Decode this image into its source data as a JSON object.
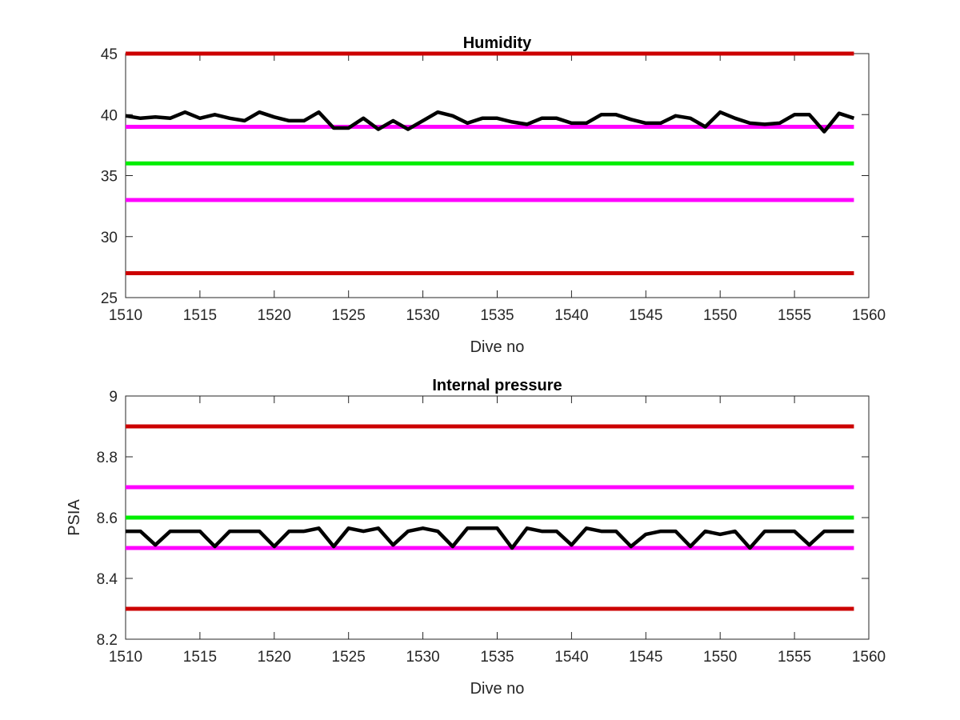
{
  "chart_data": [
    {
      "type": "line",
      "title": "Humidity",
      "xlabel": "Dive no",
      "ylabel": "",
      "xlim": [
        1510,
        1560
      ],
      "ylim": [
        25,
        45
      ],
      "xticks": [
        1510,
        1515,
        1520,
        1525,
        1530,
        1535,
        1540,
        1545,
        1550,
        1555,
        1560
      ],
      "yticks": [
        25,
        30,
        35,
        40,
        45
      ],
      "grid": false,
      "legend": "none",
      "reference_lines": [
        {
          "y": 45,
          "color": "#cc0000"
        },
        {
          "y": 39,
          "color": "#ff00ff"
        },
        {
          "y": 36,
          "color": "#00ee00"
        },
        {
          "y": 33,
          "color": "#ff00ff"
        },
        {
          "y": 27,
          "color": "#cc0000"
        }
      ],
      "series": [
        {
          "color": "#000000",
          "x": [
            1510,
            1511,
            1512,
            1513,
            1514,
            1515,
            1516,
            1517,
            1518,
            1519,
            1520,
            1521,
            1522,
            1523,
            1524,
            1525,
            1526,
            1527,
            1528,
            1529,
            1530,
            1531,
            1532,
            1533,
            1534,
            1535,
            1536,
            1537,
            1538,
            1539,
            1540,
            1541,
            1542,
            1543,
            1544,
            1545,
            1546,
            1547,
            1548,
            1549,
            1550,
            1551,
            1552,
            1553,
            1554,
            1555,
            1556,
            1557,
            1558,
            1559
          ],
          "values": [
            39.9,
            39.7,
            39.8,
            39.7,
            40.2,
            39.7,
            40.0,
            39.7,
            39.5,
            40.2,
            39.8,
            39.5,
            39.5,
            40.2,
            38.9,
            38.9,
            39.7,
            38.8,
            39.5,
            38.8,
            39.5,
            40.2,
            39.9,
            39.3,
            39.7,
            39.7,
            39.4,
            39.2,
            39.7,
            39.7,
            39.3,
            39.3,
            40.0,
            40.0,
            39.6,
            39.3,
            39.3,
            39.9,
            39.7,
            39.0,
            40.2,
            39.7,
            39.3,
            39.2,
            39.3,
            40.0,
            40.0,
            38.6,
            40.1,
            39.7
          ]
        }
      ]
    },
    {
      "type": "line",
      "title": "Internal pressure",
      "xlabel": "Dive no",
      "ylabel": "PSIA",
      "xlim": [
        1510,
        1560
      ],
      "ylim": [
        8.2,
        9.0
      ],
      "xticks": [
        1510,
        1515,
        1520,
        1525,
        1530,
        1535,
        1540,
        1545,
        1550,
        1555,
        1560
      ],
      "yticks": [
        8.2,
        8.4,
        8.6,
        8.8,
        9.0
      ],
      "ytick_labels": [
        "8.2",
        "8.4",
        "8.6",
        "8.8",
        "9"
      ],
      "grid": false,
      "legend": "none",
      "reference_lines": [
        {
          "y": 8.9,
          "color": "#cc0000"
        },
        {
          "y": 8.7,
          "color": "#ff00ff"
        },
        {
          "y": 8.6,
          "color": "#00ee00"
        },
        {
          "y": 8.5,
          "color": "#ff00ff"
        },
        {
          "y": 8.3,
          "color": "#cc0000"
        }
      ],
      "series": [
        {
          "color": "#000000",
          "x": [
            1510,
            1511,
            1512,
            1513,
            1514,
            1515,
            1516,
            1517,
            1518,
            1519,
            1520,
            1521,
            1522,
            1523,
            1524,
            1525,
            1526,
            1527,
            1528,
            1529,
            1530,
            1531,
            1532,
            1533,
            1534,
            1535,
            1536,
            1537,
            1538,
            1539,
            1540,
            1541,
            1542,
            1543,
            1544,
            1545,
            1546,
            1547,
            1548,
            1549,
            1550,
            1551,
            1552,
            1553,
            1554,
            1555,
            1556,
            1557,
            1558,
            1559
          ],
          "values": [
            8.555,
            8.555,
            8.51,
            8.555,
            8.555,
            8.555,
            8.505,
            8.555,
            8.555,
            8.555,
            8.505,
            8.555,
            8.555,
            8.565,
            8.505,
            8.565,
            8.555,
            8.565,
            8.51,
            8.555,
            8.565,
            8.555,
            8.505,
            8.565,
            8.565,
            8.565,
            8.5,
            8.565,
            8.555,
            8.555,
            8.51,
            8.565,
            8.555,
            8.555,
            8.505,
            8.545,
            8.555,
            8.555,
            8.505,
            8.555,
            8.545,
            8.555,
            8.5,
            8.555,
            8.555,
            8.555,
            8.51,
            8.555,
            8.555,
            8.555
          ]
        }
      ]
    }
  ]
}
